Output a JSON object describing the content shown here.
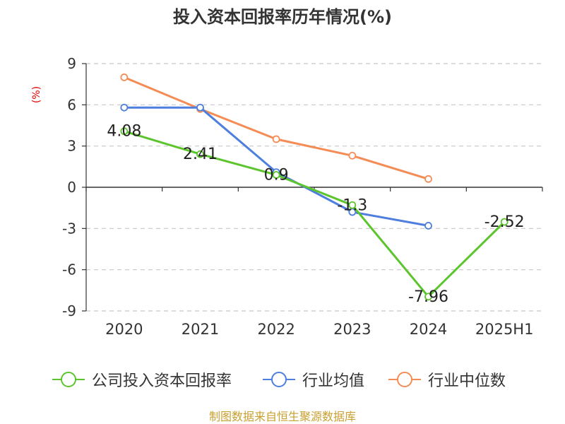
{
  "chart_data": {
    "type": "line",
    "title": "投入资本回报率历年情况(%)",
    "ylabel": "(%)",
    "categories": [
      "2020",
      "2021",
      "2022",
      "2023",
      "2024",
      "2025H1"
    ],
    "ylim": [
      -9,
      9
    ],
    "yticks": [
      9,
      6,
      3,
      0,
      -3,
      -6,
      -9
    ],
    "grid": true,
    "legend_position": "bottom",
    "series": [
      {
        "name": "公司投入资本回报率",
        "color": "#5cc52d",
        "values": [
          4.08,
          2.41,
          0.9,
          -1.3,
          -7.96,
          -2.52
        ],
        "labels": [
          "4.08",
          "2.41",
          "0.9",
          "-1.3",
          "-7.96",
          "-2.52"
        ]
      },
      {
        "name": "行业均值",
        "color": "#4f7fde",
        "values": [
          5.8,
          5.8,
          1.1,
          -1.8,
          -2.8,
          null
        ]
      },
      {
        "name": "行业中位数",
        "color": "#f58c55",
        "values": [
          8.0,
          5.7,
          3.5,
          2.3,
          0.6,
          null
        ]
      }
    ]
  },
  "footer": {
    "source": "制图数据来自恒生聚源数据库"
  }
}
